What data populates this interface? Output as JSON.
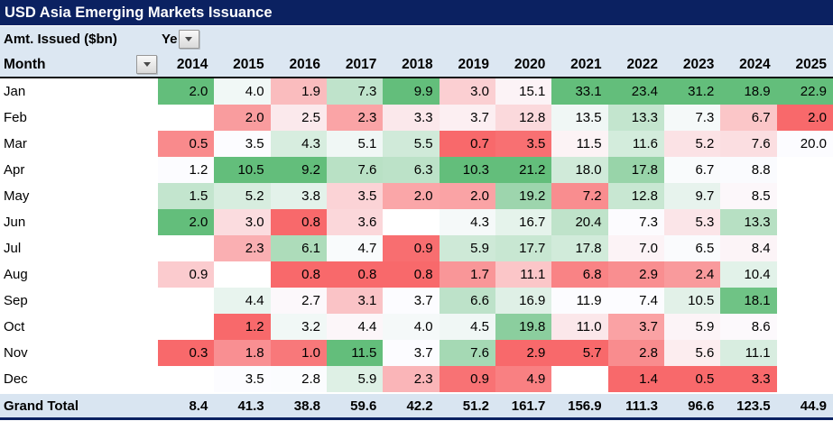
{
  "title": "USD Asia Emerging Markets Issuance",
  "filter_row": {
    "label": "Amt. Issued ($bn)",
    "field": "Ye"
  },
  "header": {
    "month_label": "Month"
  },
  "grand_total": {
    "label": "Grand Total",
    "values": [
      8.4,
      41.3,
      38.8,
      59.6,
      42.2,
      51.2,
      161.7,
      156.9,
      111.3,
      96.6,
      123.5,
      44.9
    ]
  },
  "colors": {
    "title_bg": "#0B2161",
    "header_bg": "#DCE7F2",
    "scale_min_red": "#F8696B",
    "scale_mid_white": "#FCFCFF",
    "scale_max_green": "#63BE7B"
  },
  "chart_data": {
    "type": "heatmap",
    "title": "USD Asia Emerging Markets Issuance",
    "unit_label": "Amt. Issued ($bn)",
    "columns": [
      "2014",
      "2015",
      "2016",
      "2017",
      "2018",
      "2019",
      "2020",
      "2021",
      "2022",
      "2023",
      "2024",
      "2025"
    ],
    "rows": [
      "Jan",
      "Feb",
      "Mar",
      "Apr",
      "May",
      "Jun",
      "Jul",
      "Aug",
      "Sep",
      "Oct",
      "Nov",
      "Dec"
    ],
    "matrix": [
      [
        2.0,
        4.0,
        1.9,
        7.3,
        9.9,
        3.0,
        15.1,
        33.1,
        23.4,
        31.2,
        18.9,
        22.9
      ],
      [
        null,
        2.0,
        2.5,
        2.3,
        3.3,
        3.7,
        12.8,
        13.5,
        13.3,
        7.3,
        6.7,
        2.0
      ],
      [
        0.5,
        3.5,
        4.3,
        5.1,
        5.5,
        0.7,
        3.5,
        11.5,
        11.6,
        5.2,
        7.6,
        20.0
      ],
      [
        1.2,
        10.5,
        9.2,
        7.6,
        6.3,
        10.3,
        21.2,
        18.0,
        17.8,
        6.7,
        8.8,
        null
      ],
      [
        1.5,
        5.2,
        3.8,
        3.5,
        2.0,
        2.0,
        19.2,
        7.2,
        12.8,
        9.7,
        8.5,
        null
      ],
      [
        2.0,
        3.0,
        0.8,
        3.6,
        null,
        4.3,
        16.7,
        20.4,
        7.3,
        5.3,
        13.3,
        null
      ],
      [
        null,
        2.3,
        6.1,
        4.7,
        0.9,
        5.9,
        17.7,
        17.8,
        7.0,
        6.5,
        8.4,
        null
      ],
      [
        0.9,
        null,
        0.8,
        0.8,
        0.8,
        1.7,
        11.1,
        6.8,
        2.9,
        2.4,
        10.4,
        null
      ],
      [
        null,
        4.4,
        2.7,
        3.1,
        3.7,
        6.6,
        16.9,
        11.9,
        7.4,
        10.5,
        18.1,
        null
      ],
      [
        null,
        1.2,
        3.2,
        4.4,
        4.0,
        4.5,
        19.8,
        11.0,
        3.7,
        5.9,
        8.6,
        null
      ],
      [
        0.3,
        1.8,
        1.0,
        11.5,
        3.7,
        7.6,
        2.9,
        5.7,
        2.8,
        5.6,
        11.1,
        null
      ],
      [
        null,
        3.5,
        2.8,
        5.9,
        2.3,
        0.9,
        4.9,
        null,
        1.4,
        0.5,
        3.3,
        null
      ]
    ],
    "grand_total": [
      8.4,
      41.3,
      38.8,
      59.6,
      42.2,
      51.2,
      161.7,
      156.9,
      111.3,
      96.6,
      123.5,
      44.9
    ],
    "color_scale": "per-column 3-color: min=red #F8696B, 50th percentile=white #FCFCFF, max=green #63BE7B"
  }
}
